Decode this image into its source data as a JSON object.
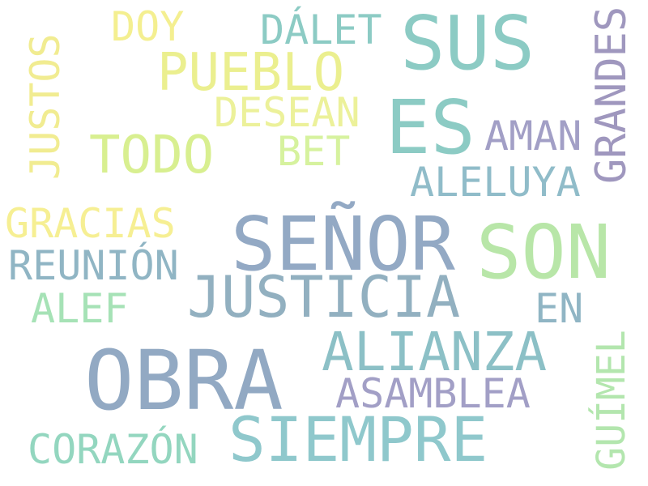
{
  "words": [
    {
      "id": "senor",
      "text": "SEÑOR",
      "color": "#93a9c4"
    },
    {
      "id": "obra",
      "text": "OBRA",
      "color": "#92a9c3"
    },
    {
      "id": "sus",
      "text": "SUS",
      "color": "#8ccbc4"
    },
    {
      "id": "es",
      "text": "ES",
      "color": "#8ccbc4"
    },
    {
      "id": "son",
      "text": "SON",
      "color": "#b8e6a8"
    },
    {
      "id": "siempre",
      "text": "SIEMPRE",
      "color": "#8fc8cc"
    },
    {
      "id": "justicia",
      "text": "JUSTICIA",
      "color": "#92b0c0"
    },
    {
      "id": "alianza",
      "text": "ALIANZA",
      "color": "#8cc0c6"
    },
    {
      "id": "pueblo",
      "text": "PUEBLO",
      "color": "#ebef8f"
    },
    {
      "id": "todo",
      "text": "TODO",
      "color": "#d8ef90"
    },
    {
      "id": "grandes",
      "text": "GRANDES",
      "color": "#9f97be"
    },
    {
      "id": "asamblea",
      "text": "ASAMBLEA",
      "color": "#a29fc6"
    },
    {
      "id": "dalet",
      "text": "DÁLET",
      "color": "#8ccbc4"
    },
    {
      "id": "desean",
      "text": "DESEAN",
      "color": "#ecf19a"
    },
    {
      "id": "aman",
      "text": "AMAN",
      "color": "#a29fc6"
    },
    {
      "id": "aleluya",
      "text": "ALELUYA",
      "color": "#90bcc9"
    },
    {
      "id": "gracias",
      "text": "GRACIAS",
      "color": "#f6ef93"
    },
    {
      "id": "reunion",
      "text": "REUNIÓN",
      "color": "#90b5c4"
    },
    {
      "id": "corazon",
      "text": "CORAZÓN",
      "color": "#93d6bf"
    },
    {
      "id": "justos",
      "text": "JUSTOS",
      "color": "#f1ec91"
    },
    {
      "id": "guimel",
      "text": "GUÍMEL",
      "color": "#b3e6ae"
    },
    {
      "id": "alef",
      "text": "ALEF",
      "color": "#a6e2b6"
    },
    {
      "id": "doy",
      "text": "DOY",
      "color": "#f4ef90"
    },
    {
      "id": "bet",
      "text": "BET",
      "color": "#d6f29e"
    },
    {
      "id": "en",
      "text": "EN",
      "color": "#90b5c4"
    }
  ]
}
